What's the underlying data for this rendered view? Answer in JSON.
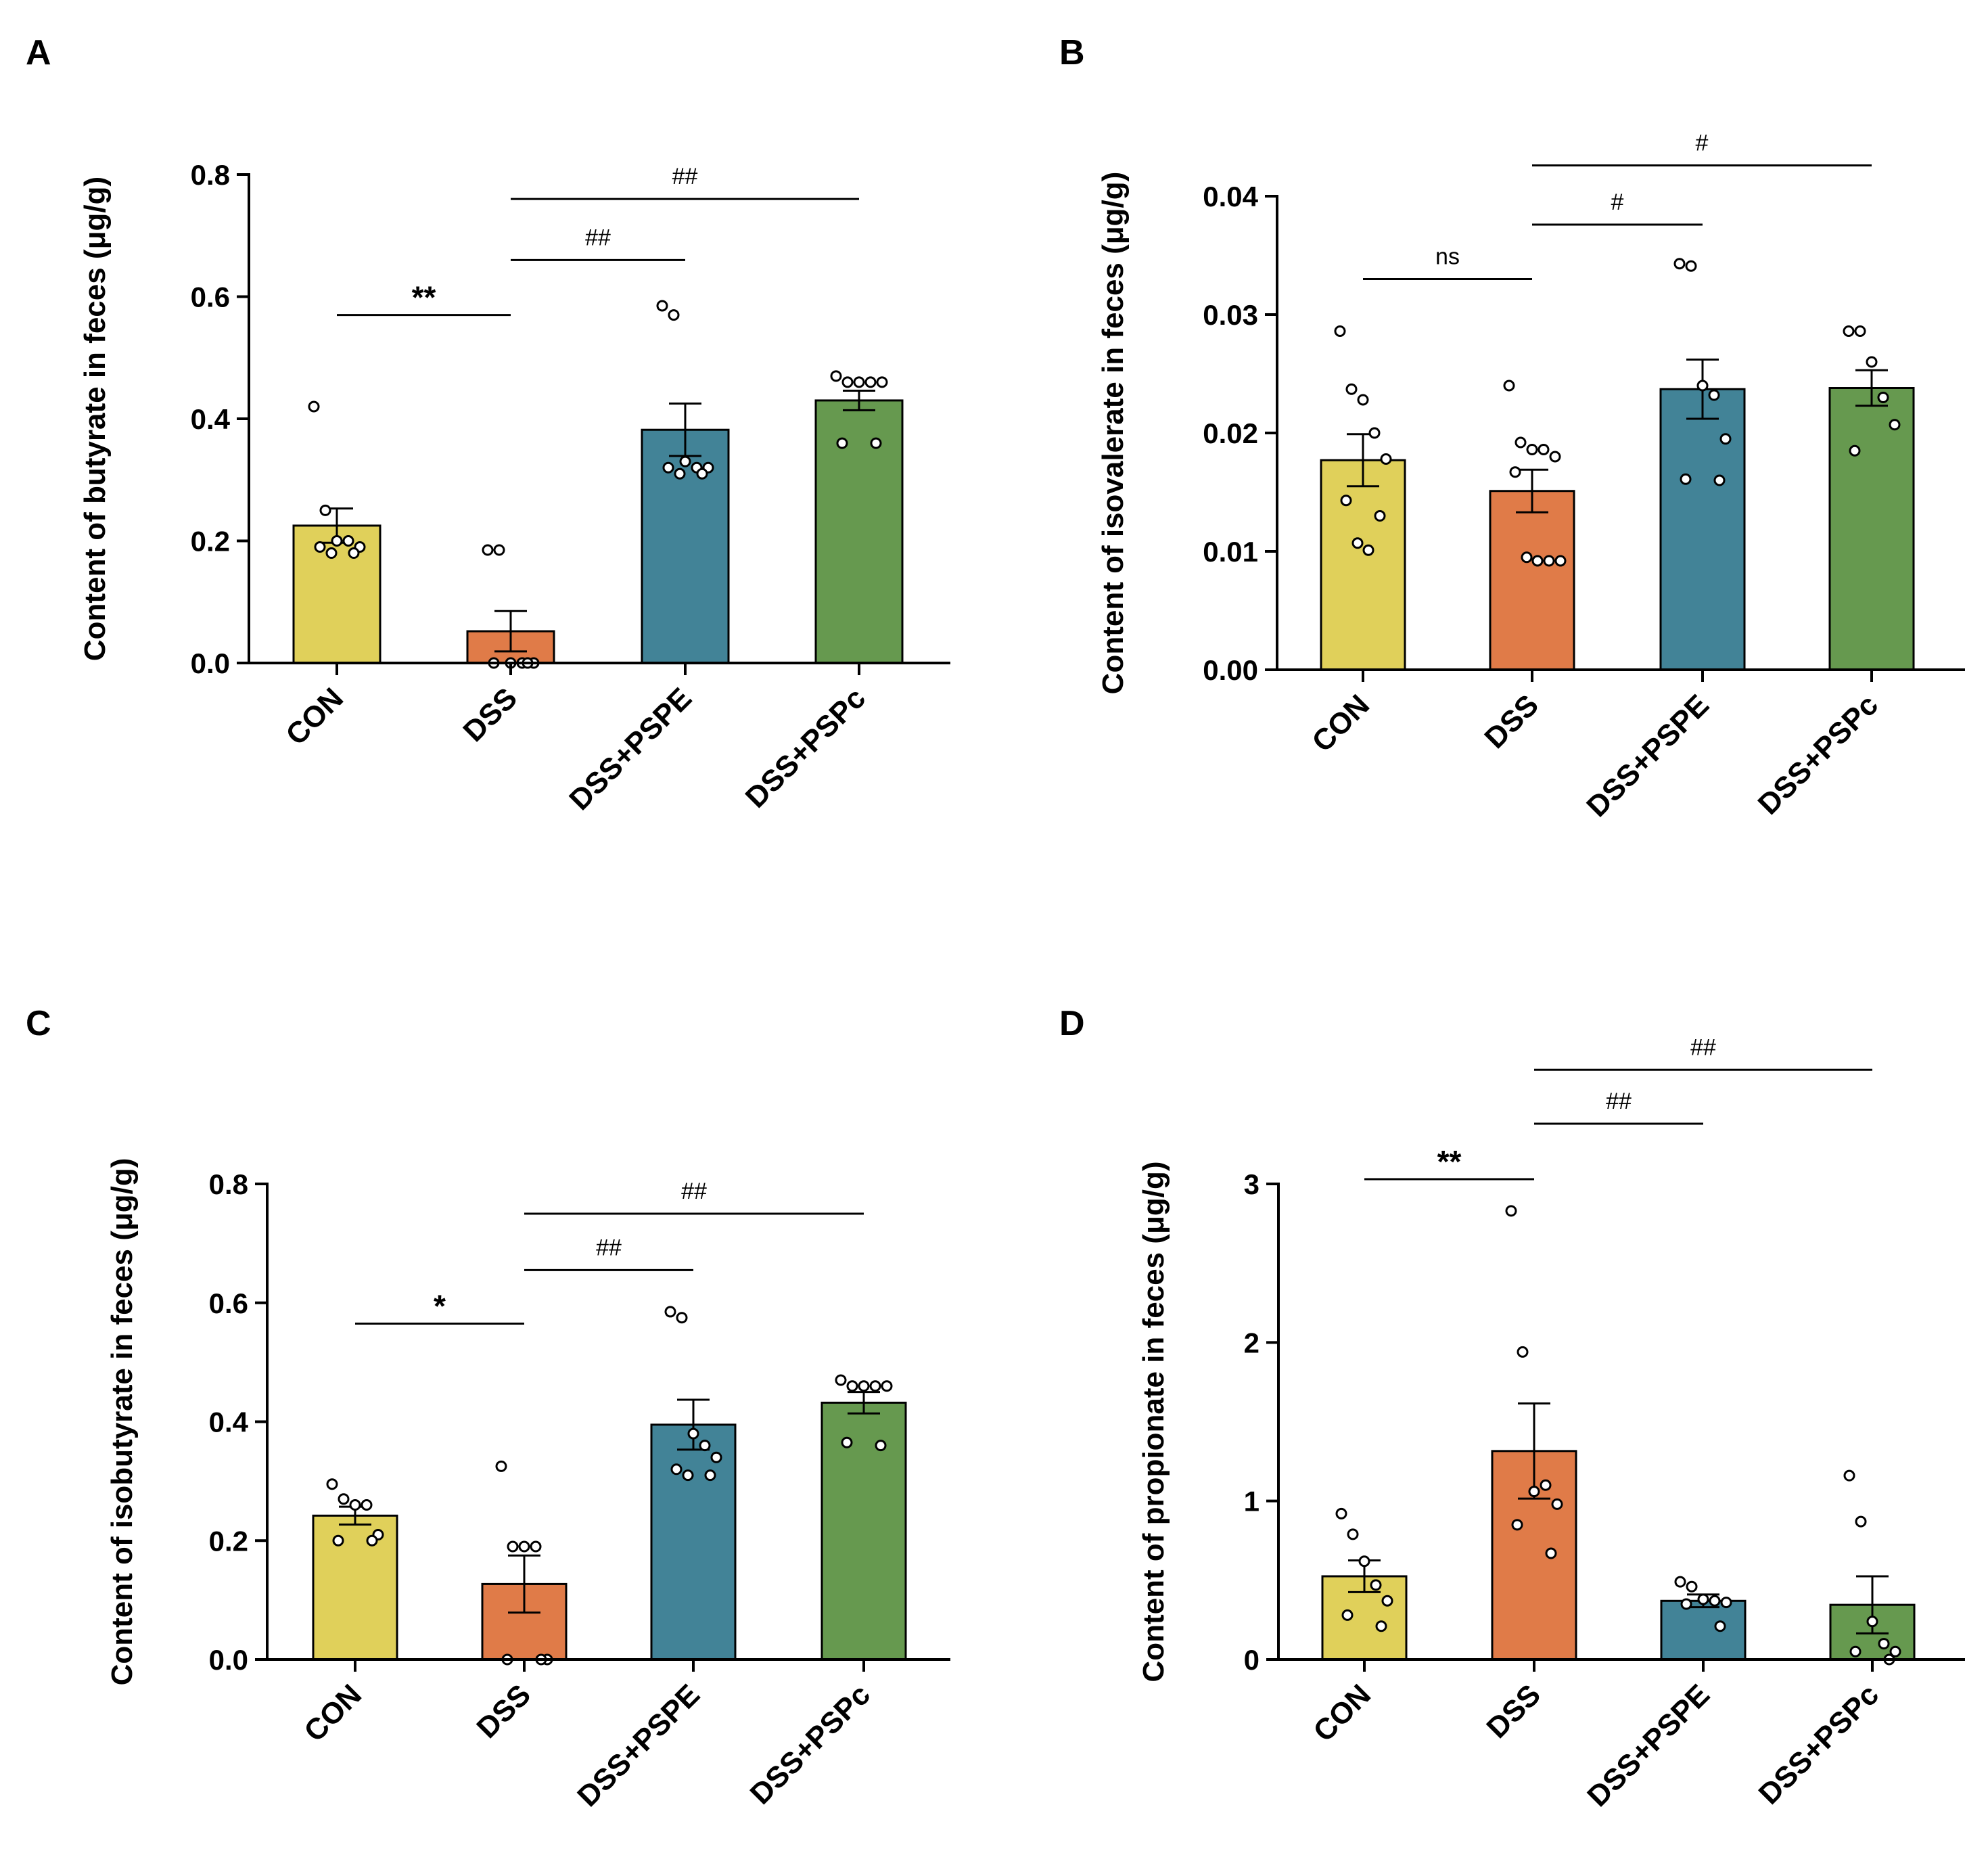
{
  "figure": {
    "categories": [
      "CON",
      "DSS",
      "DSS+PSPE",
      "DSS+PSPc"
    ],
    "colors": {
      "CON": "#E0D05A",
      "DSS": "#E07B48",
      "DSS+PSPE": "#428397",
      "DSS+PSPc": "#66994F",
      "axis": "#000000",
      "point_fill": "#ffffff"
    }
  },
  "chart_data": [
    {
      "panel": "A",
      "type": "bar",
      "ylabel": "Content of butyrate in feces (μg/g)",
      "categories": [
        "CON",
        "DSS",
        "DSS+PSPE",
        "DSS+PSPc"
      ],
      "values": [
        0.225,
        0.052,
        0.382,
        0.43
      ],
      "sem": [
        0.028,
        0.033,
        0.043,
        0.016
      ],
      "points": [
        [
          0.42,
          0.25,
          0.2,
          0.2,
          0.19,
          0.19,
          0.18,
          0.18
        ],
        [
          0.185,
          0.185,
          0.0,
          0.0,
          0.0,
          0.0,
          0.0
        ],
        [
          0.585,
          0.57,
          0.33,
          0.32,
          0.32,
          0.32,
          0.31,
          0.31
        ],
        [
          0.47,
          0.46,
          0.46,
          0.46,
          0.46,
          0.36,
          0.36
        ]
      ],
      "ylim": [
        0,
        0.8
      ],
      "yticks": [
        0.0,
        0.2,
        0.4,
        0.6,
        0.8
      ],
      "ytick_labels": [
        "0.0",
        "0.2",
        "0.4",
        "0.6",
        "0.8"
      ],
      "comparisons": [
        {
          "from": 0,
          "to": 1,
          "y": 0.57,
          "label": "**",
          "style": "star"
        },
        {
          "from": 1,
          "to": 2,
          "y": 0.66,
          "label": "##",
          "style": "hash"
        },
        {
          "from": 1,
          "to": 3,
          "y": 0.76,
          "label": "##",
          "style": "hash"
        }
      ]
    },
    {
      "panel": "B",
      "type": "bar",
      "ylabel": "Content of isovalerate in feces (μg/g)",
      "categories": [
        "CON",
        "DSS",
        "DSS+PSPE",
        "DSS+PSPc"
      ],
      "values": [
        0.0177,
        0.0151,
        0.0237,
        0.0238
      ],
      "sem": [
        0.0022,
        0.0018,
        0.0025,
        0.0015
      ],
      "points": [
        [
          0.0286,
          0.0237,
          0.0228,
          0.02,
          0.0178,
          0.0143,
          0.013,
          0.0107,
          0.0101
        ],
        [
          0.024,
          0.0192,
          0.0186,
          0.0186,
          0.018,
          0.0167,
          0.0092,
          0.0095,
          0.0092,
          0.0092
        ],
        [
          0.0343,
          0.0341,
          0.024,
          0.0232,
          0.0195,
          0.0161,
          0.016
        ],
        [
          0.0286,
          0.0286,
          0.026,
          0.023,
          0.0207,
          0.0185
        ]
      ],
      "ylim": [
        0,
        0.04
      ],
      "yticks": [
        0.0,
        0.01,
        0.02,
        0.03,
        0.04
      ],
      "ytick_labels": [
        "0.00",
        "0.01",
        "0.02",
        "0.03",
        "0.04"
      ],
      "comparisons": [
        {
          "from": 0,
          "to": 1,
          "y": 0.033,
          "label": "ns",
          "style": "hash"
        },
        {
          "from": 1,
          "to": 2,
          "y": 0.0376,
          "label": "#",
          "style": "hash"
        },
        {
          "from": 1,
          "to": 3,
          "y": 0.0426,
          "label": "#",
          "style": "hash"
        }
      ]
    },
    {
      "panel": "C",
      "type": "bar",
      "ylabel": "Content of isobutyrate in feces (μg/g)",
      "categories": [
        "CON",
        "DSS",
        "DSS+PSPE",
        "DSS+PSPc"
      ],
      "values": [
        0.242,
        0.127,
        0.395,
        0.432
      ],
      "sem": [
        0.015,
        0.048,
        0.042,
        0.018
      ],
      "points": [
        [
          0.295,
          0.27,
          0.26,
          0.26,
          0.21,
          0.2,
          0.2
        ],
        [
          0.325,
          0.19,
          0.19,
          0.19,
          0.0,
          0.0,
          0.0
        ],
        [
          0.585,
          0.575,
          0.38,
          0.36,
          0.34,
          0.32,
          0.31,
          0.31
        ],
        [
          0.47,
          0.46,
          0.46,
          0.46,
          0.46,
          0.365,
          0.36
        ]
      ],
      "ylim": [
        0,
        0.8
      ],
      "yticks": [
        0.0,
        0.2,
        0.4,
        0.6,
        0.8
      ],
      "ytick_labels": [
        "0.0",
        "0.2",
        "0.4",
        "0.6",
        "0.8"
      ],
      "comparisons": [
        {
          "from": 0,
          "to": 1,
          "y": 0.565,
          "label": "*",
          "style": "star"
        },
        {
          "from": 1,
          "to": 2,
          "y": 0.655,
          "label": "##",
          "style": "hash"
        },
        {
          "from": 1,
          "to": 3,
          "y": 0.75,
          "label": "##",
          "style": "hash"
        }
      ]
    },
    {
      "panel": "D",
      "type": "bar",
      "ylabel": "Content of propionate in feces (μg/g)",
      "categories": [
        "CON",
        "DSS",
        "DSS+PSPE",
        "DSS+PSPc"
      ],
      "values": [
        0.525,
        1.315,
        0.37,
        0.345
      ],
      "sem": [
        0.1,
        0.3,
        0.04,
        0.18
      ],
      "points": [
        [
          0.92,
          0.79,
          0.62,
          0.47,
          0.37,
          0.28,
          0.21
        ],
        [
          2.83,
          1.94,
          1.06,
          1.1,
          0.98,
          0.85,
          0.67
        ],
        [
          0.49,
          0.46,
          0.38,
          0.37,
          0.36,
          0.35,
          0.21
        ],
        [
          1.16,
          0.87,
          0.24,
          0.1,
          0.05,
          0.05,
          0.0
        ]
      ],
      "ylim": [
        0,
        3
      ],
      "yticks": [
        0,
        1,
        2,
        3
      ],
      "ytick_labels": [
        "0",
        "1",
        "2",
        "3"
      ],
      "comparisons": [
        {
          "from": 0,
          "to": 1,
          "y": 3.03,
          "label": "**",
          "style": "star"
        },
        {
          "from": 1,
          "to": 2,
          "y": 3.38,
          "label": "##",
          "style": "hash"
        },
        {
          "from": 1,
          "to": 3,
          "y": 3.72,
          "label": "##",
          "style": "hash"
        }
      ]
    }
  ]
}
